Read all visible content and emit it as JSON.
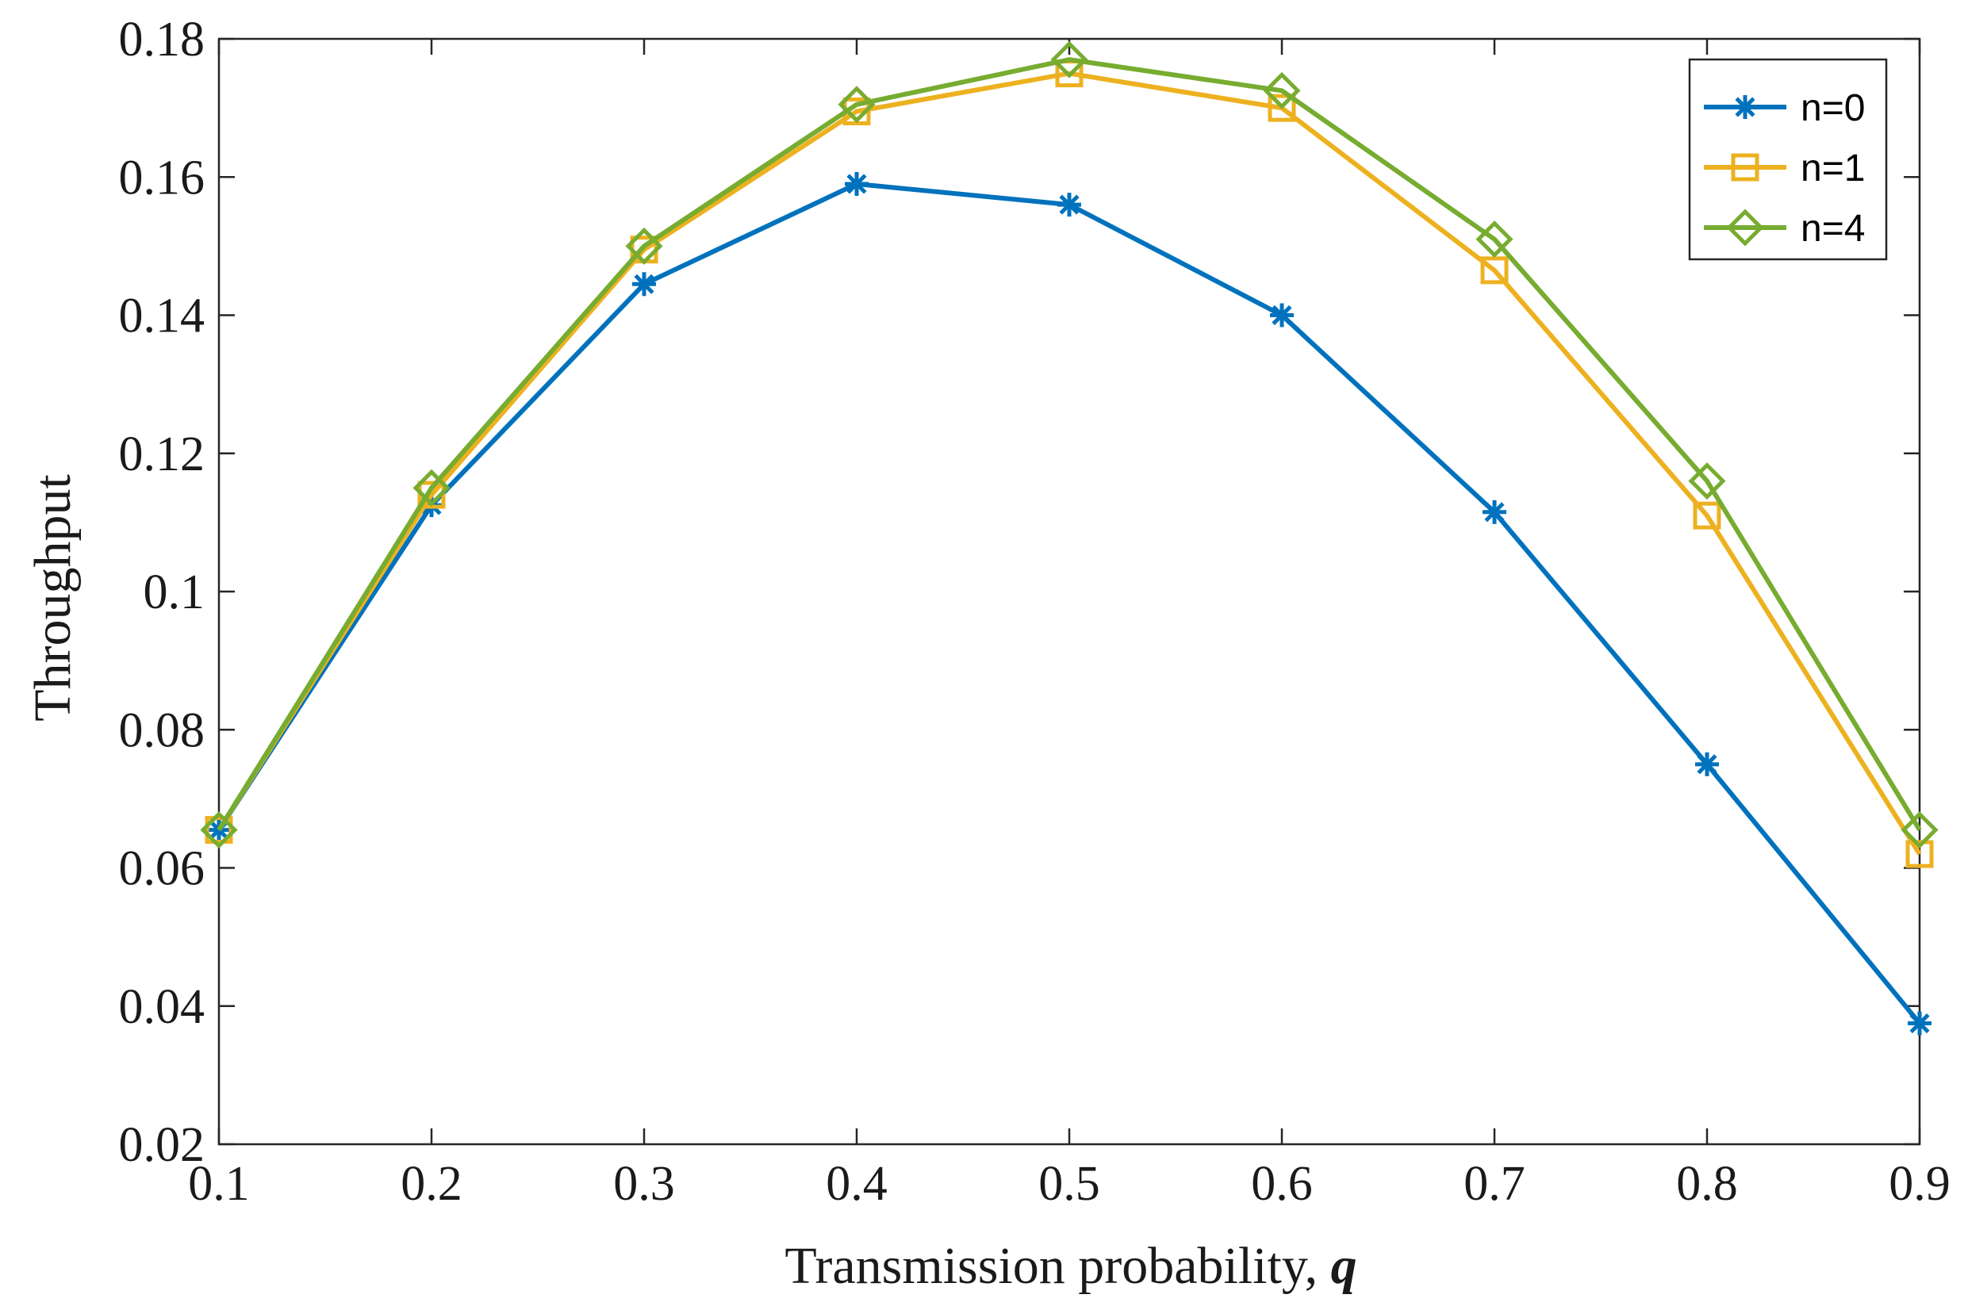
{
  "chart_data": {
    "type": "line",
    "title": "",
    "xlabel": "Transmission probability, ",
    "xlabel_var": "q",
    "ylabel": "Throughput",
    "x": [
      0.1,
      0.2,
      0.3,
      0.4,
      0.5,
      0.6,
      0.7,
      0.8,
      0.9
    ],
    "xlim": [
      0.1,
      0.9
    ],
    "ylim": [
      0.02,
      0.18
    ],
    "xticks": [
      "0.1",
      "0.2",
      "0.3",
      "0.4",
      "0.5",
      "0.6",
      "0.7",
      "0.8",
      "0.9"
    ],
    "yticks": [
      "0.02",
      "0.04",
      "0.06",
      "0.08",
      "0.1",
      "0.12",
      "0.14",
      "0.16",
      "0.18"
    ],
    "grid": false,
    "legend_position": "top-right",
    "series": [
      {
        "name": "n=0",
        "marker": "asterisk",
        "color": "#0072BD",
        "values": [
          0.0655,
          0.1125,
          0.1445,
          0.159,
          0.156,
          0.14,
          0.1115,
          0.075,
          0.0375
        ]
      },
      {
        "name": "n=1",
        "marker": "square",
        "color": "#EDB120",
        "values": [
          0.0655,
          0.114,
          0.1495,
          0.1695,
          0.175,
          0.17,
          0.1465,
          0.111,
          0.062
        ]
      },
      {
        "name": "n=4",
        "marker": "diamond",
        "color": "#77AC30",
        "values": [
          0.0655,
          0.115,
          0.15,
          0.1705,
          0.177,
          0.1725,
          0.151,
          0.116,
          0.0655
        ]
      }
    ]
  }
}
